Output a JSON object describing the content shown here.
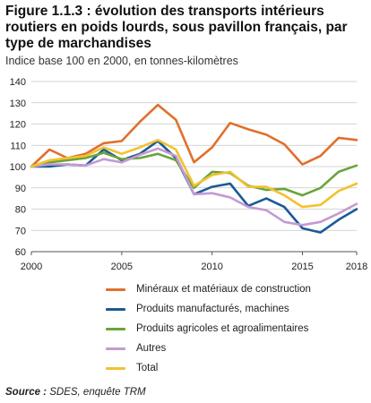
{
  "figure": {
    "title": "Figure 1.1.3 : évolution des transports intérieurs routiers en poids lourds, sous pavillon français, par type de marchandises",
    "subtitle": "Indice base 100 en 2000, en tonnes-kilomètres",
    "source_label": "Source :",
    "source_text": "SDES, enquête TRM"
  },
  "chart_data": {
    "type": "line",
    "x": [
      2000,
      2001,
      2002,
      2003,
      2004,
      2005,
      2006,
      2007,
      2008,
      2009,
      2010,
      2011,
      2012,
      2013,
      2014,
      2015,
      2016,
      2017,
      2018
    ],
    "xticks": [
      "2000",
      "2005",
      "2010",
      "2015",
      "2018"
    ],
    "yticks": [
      "60",
      "70",
      "80",
      "90",
      "100",
      "110",
      "120",
      "130",
      "140"
    ],
    "ylim": [
      60,
      140
    ],
    "xlim": [
      2000,
      2018
    ],
    "grid": "horizontal",
    "legend_position": "bottom",
    "title": "",
    "xlabel": "",
    "ylabel": "",
    "series": [
      {
        "name": "Minéraux et matériaux de construction",
        "color": "#e0702a",
        "values": [
          100,
          108,
          104,
          106,
          111,
          112,
          121,
          129,
          122,
          102,
          109,
          120.5,
          117.5,
          115,
          110.5,
          101,
          105,
          113.5,
          112.5
        ]
      },
      {
        "name": "Produits manufacturés, machines",
        "color": "#1a5a96",
        "values": [
          100,
          100,
          101,
          100.5,
          108,
          103,
          106,
          112,
          104,
          87,
          90.5,
          92,
          81.5,
          85,
          81,
          71,
          69,
          75,
          80
        ]
      },
      {
        "name": "Produits agricoles et agroalimentaires",
        "color": "#6aa43a",
        "values": [
          100,
          102,
          103,
          104,
          106.5,
          103.5,
          104,
          106,
          103,
          90,
          97.5,
          97,
          91,
          89,
          89.5,
          86.5,
          90,
          97.5,
          100.5
        ]
      },
      {
        "name": "Autres",
        "color": "#c49ad2",
        "values": [
          100,
          101,
          101,
          100.5,
          103.5,
          102,
          105.5,
          108.5,
          105,
          87,
          87.5,
          85.5,
          81,
          79.5,
          74,
          72.5,
          74,
          78,
          82.5
        ]
      },
      {
        "name": "Total",
        "color": "#f2c230",
        "values": [
          100,
          103,
          104,
          105,
          109,
          106,
          109,
          112.5,
          108,
          91,
          96,
          97.5,
          90.5,
          90.5,
          86.5,
          81,
          82,
          88.5,
          92
        ]
      }
    ]
  }
}
